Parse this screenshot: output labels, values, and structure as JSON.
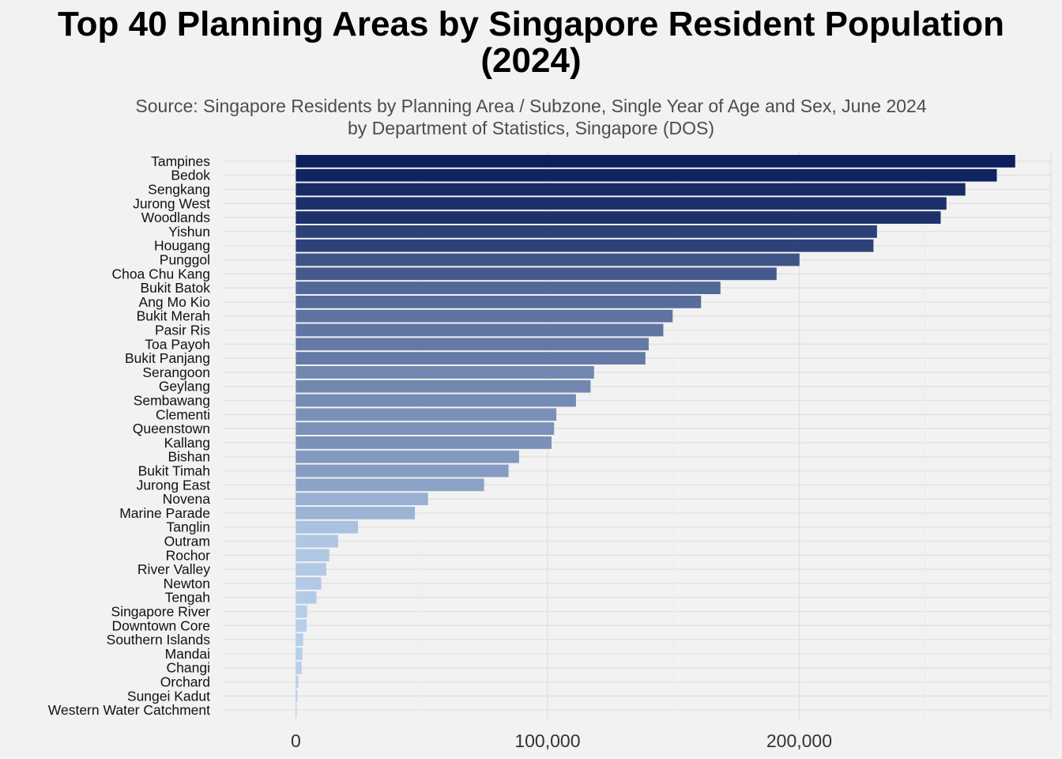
{
  "chart_data": {
    "type": "bar",
    "orientation": "horizontal",
    "title_lines": [
      "Top 40 Planning Areas by Singapore Resident Population",
      "(2024)"
    ],
    "subtitle_lines": [
      "Source: Singapore Residents by Planning Area / Subzone, Single Year of Age and Sex, June 2024",
      "by Department of Statistics, Singapore (DOS)"
    ],
    "xlabel": "",
    "ylabel": "",
    "x_ticks": [
      0,
      100000,
      200000
    ],
    "x_tick_labels": [
      "0",
      "100,000",
      "200,000"
    ],
    "xlim": [
      -29000,
      300000
    ],
    "grid": true,
    "legend": "none",
    "color_scale": {
      "high": "#0b1f5c",
      "low": "#b9d0ec"
    },
    "categories": [
      "Tampines",
      "Bedok",
      "Sengkang",
      "Jurong West",
      "Woodlands",
      "Yishun",
      "Hougang",
      "Punggol",
      "Choa Chu Kang",
      "Bukit Batok",
      "Ang Mo Kio",
      "Bukit Merah",
      "Pasir Ris",
      "Toa Payoh",
      "Bukit Panjang",
      "Serangoon",
      "Geylang",
      "Sembawang",
      "Clementi",
      "Queenstown",
      "Kallang",
      "Bishan",
      "Bukit Timah",
      "Jurong East",
      "Novena",
      "Marine Parade",
      "Tanglin",
      "Outram",
      "Rochor",
      "River Valley",
      "Newton",
      "Tengah",
      "Singapore River",
      "Downtown Core",
      "Southern Islands",
      "Mandai",
      "Changi",
      "Orchard",
      "Sungei Kadut",
      "Western Water Catchment"
    ],
    "values": [
      285800,
      278500,
      266000,
      258500,
      256200,
      230900,
      229500,
      200100,
      191000,
      168700,
      161000,
      149700,
      146000,
      140200,
      138900,
      118500,
      117100,
      111300,
      103500,
      102600,
      101600,
      88700,
      84500,
      74800,
      52500,
      47300,
      24700,
      16800,
      13300,
      12100,
      10100,
      8200,
      4500,
      4300,
      2900,
      2600,
      2300,
      1000,
      600,
      300
    ]
  }
}
